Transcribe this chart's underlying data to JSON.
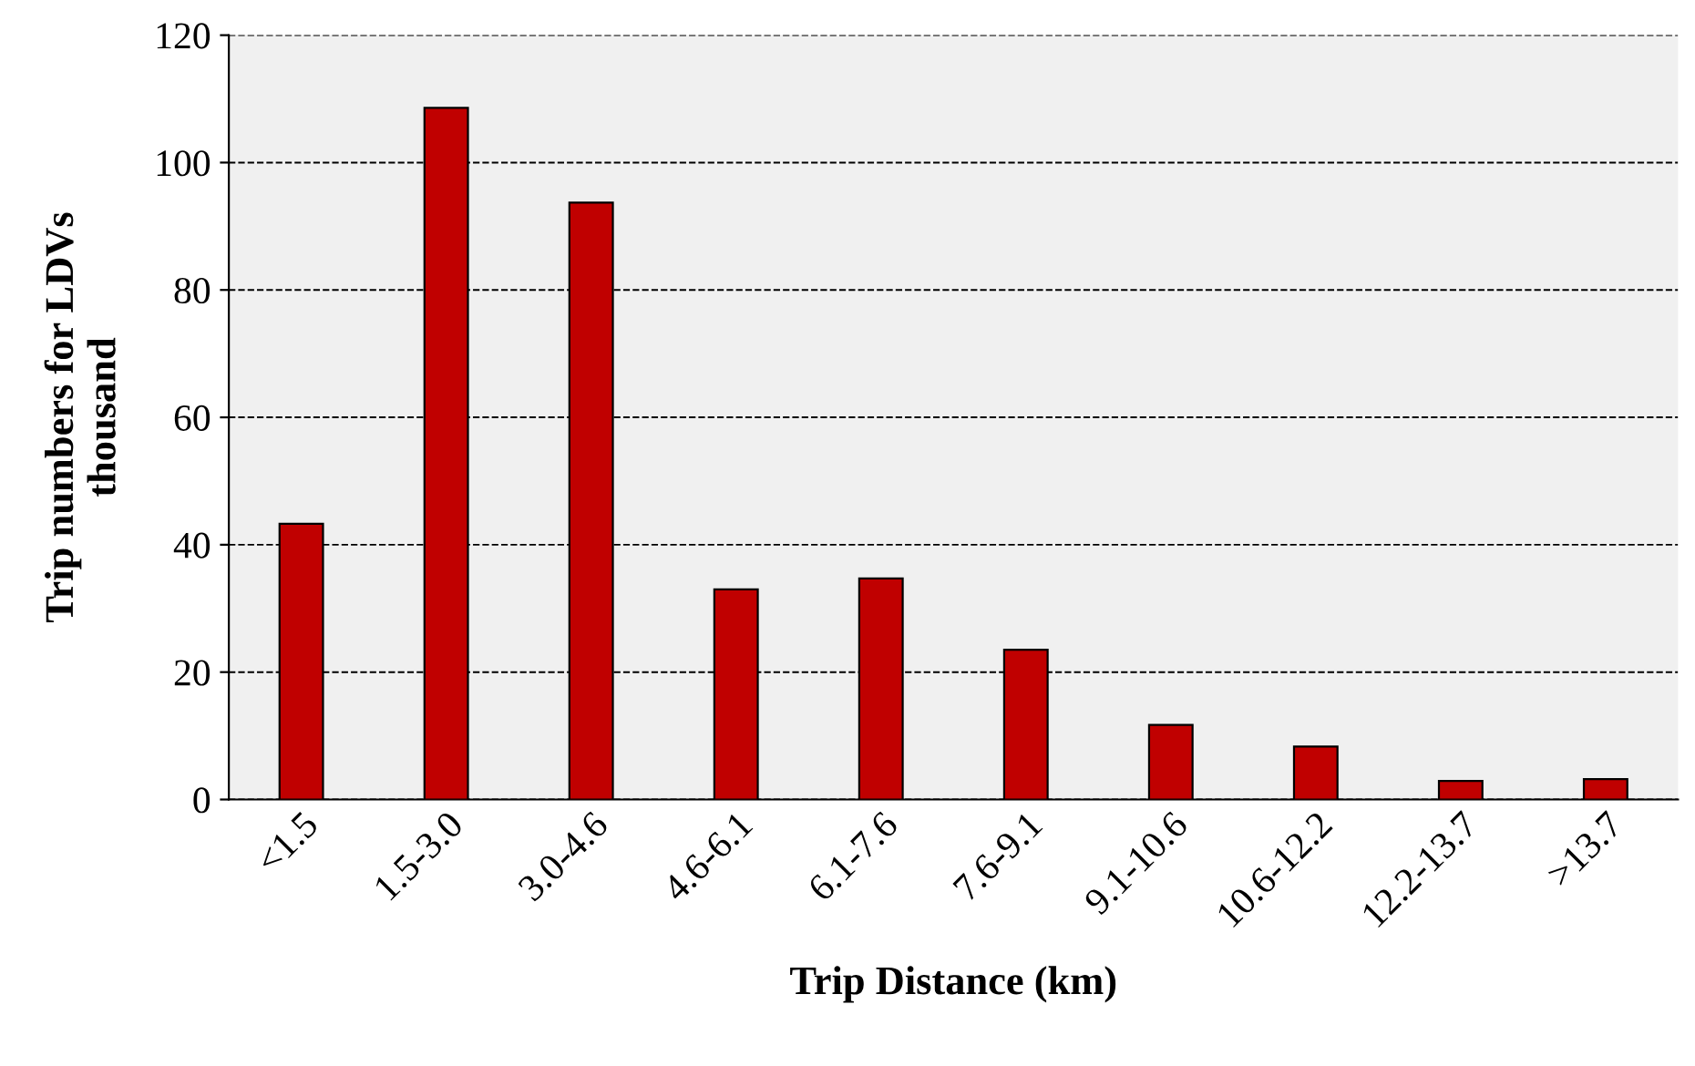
{
  "chart_data": {
    "type": "bar",
    "xlabel": "Trip Distance (km)",
    "ylabel": "Trip numbers for LDVs\nthousand",
    "categories": [
      "<1.5",
      "1.5-3.0",
      "3.0-4.6",
      "4.6-6.1",
      "6.1-7.6",
      "7.6-9.1",
      "9.1-10.6",
      "10.6-12.2",
      "12.2-13.7",
      ">13.7"
    ],
    "values": [
      43.3,
      108.6,
      93.7,
      33.0,
      34.7,
      23.5,
      11.7,
      8.3,
      2.9,
      3.2
    ],
    "color": "#c00000",
    "ylim": [
      0,
      120
    ],
    "yticks": [
      0,
      20,
      40,
      60,
      80,
      100,
      120
    ],
    "grid": "y"
  }
}
